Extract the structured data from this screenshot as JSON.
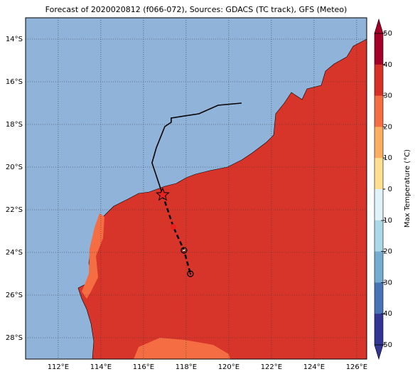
{
  "chart_data": {
    "type": "map",
    "title": "Forecast of 2020020812 (f066-072), Sources: GDACS (TC track), GFS (Meteo)",
    "xlim": [
      110.47,
      126.47
    ],
    "ylim": [
      -29,
      -13
    ],
    "xticks": [
      {
        "value": 112,
        "label": "112°E"
      },
      {
        "value": 114,
        "label": "114°E"
      },
      {
        "value": 116,
        "label": "116°E"
      },
      {
        "value": 118,
        "label": "118°E"
      },
      {
        "value": 120,
        "label": "120°E"
      },
      {
        "value": 122,
        "label": "122°E"
      },
      {
        "value": 124,
        "label": "124°E"
      },
      {
        "value": 126,
        "label": "126°E"
      }
    ],
    "yticks": [
      {
        "value": -14,
        "label": "14°S"
      },
      {
        "value": -16,
        "label": "16°S"
      },
      {
        "value": -18,
        "label": "18°S"
      },
      {
        "value": -20,
        "label": "20°S"
      },
      {
        "value": -22,
        "label": "22°S"
      },
      {
        "value": -24,
        "label": "24°S"
      },
      {
        "value": -26,
        "label": "26°S"
      },
      {
        "value": -28,
        "label": "28°S"
      }
    ],
    "grid": true,
    "track": {
      "lon": [
        120.6,
        119.5,
        118.6,
        117.3,
        117.3,
        117.0,
        116.6,
        116.4,
        116.9
      ],
      "lat": [
        -17.0,
        -17.1,
        -17.5,
        -17.7,
        -17.9,
        -18.1,
        -19.1,
        -19.8,
        -21.3
      ]
    },
    "forecast": {
      "lon": [
        116.9,
        117.4,
        117.9,
        118.2
      ],
      "lat": [
        -21.3,
        -22.8,
        -23.9,
        -25.0
      ]
    },
    "colorbar": {
      "label": "Max Temperature (°C)",
      "lim": [
        -50,
        50
      ],
      "ticks": [
        50,
        40,
        30,
        20,
        10,
        0,
        -10,
        -20,
        -30,
        -40,
        -50
      ],
      "colors": [
        "#a50026",
        "#d73027",
        "#f46d43",
        "#fdae61",
        "#fee090",
        "#e0f3f8",
        "#abd9e9",
        "#74add1",
        "#4575b4",
        "#313695"
      ]
    }
  }
}
